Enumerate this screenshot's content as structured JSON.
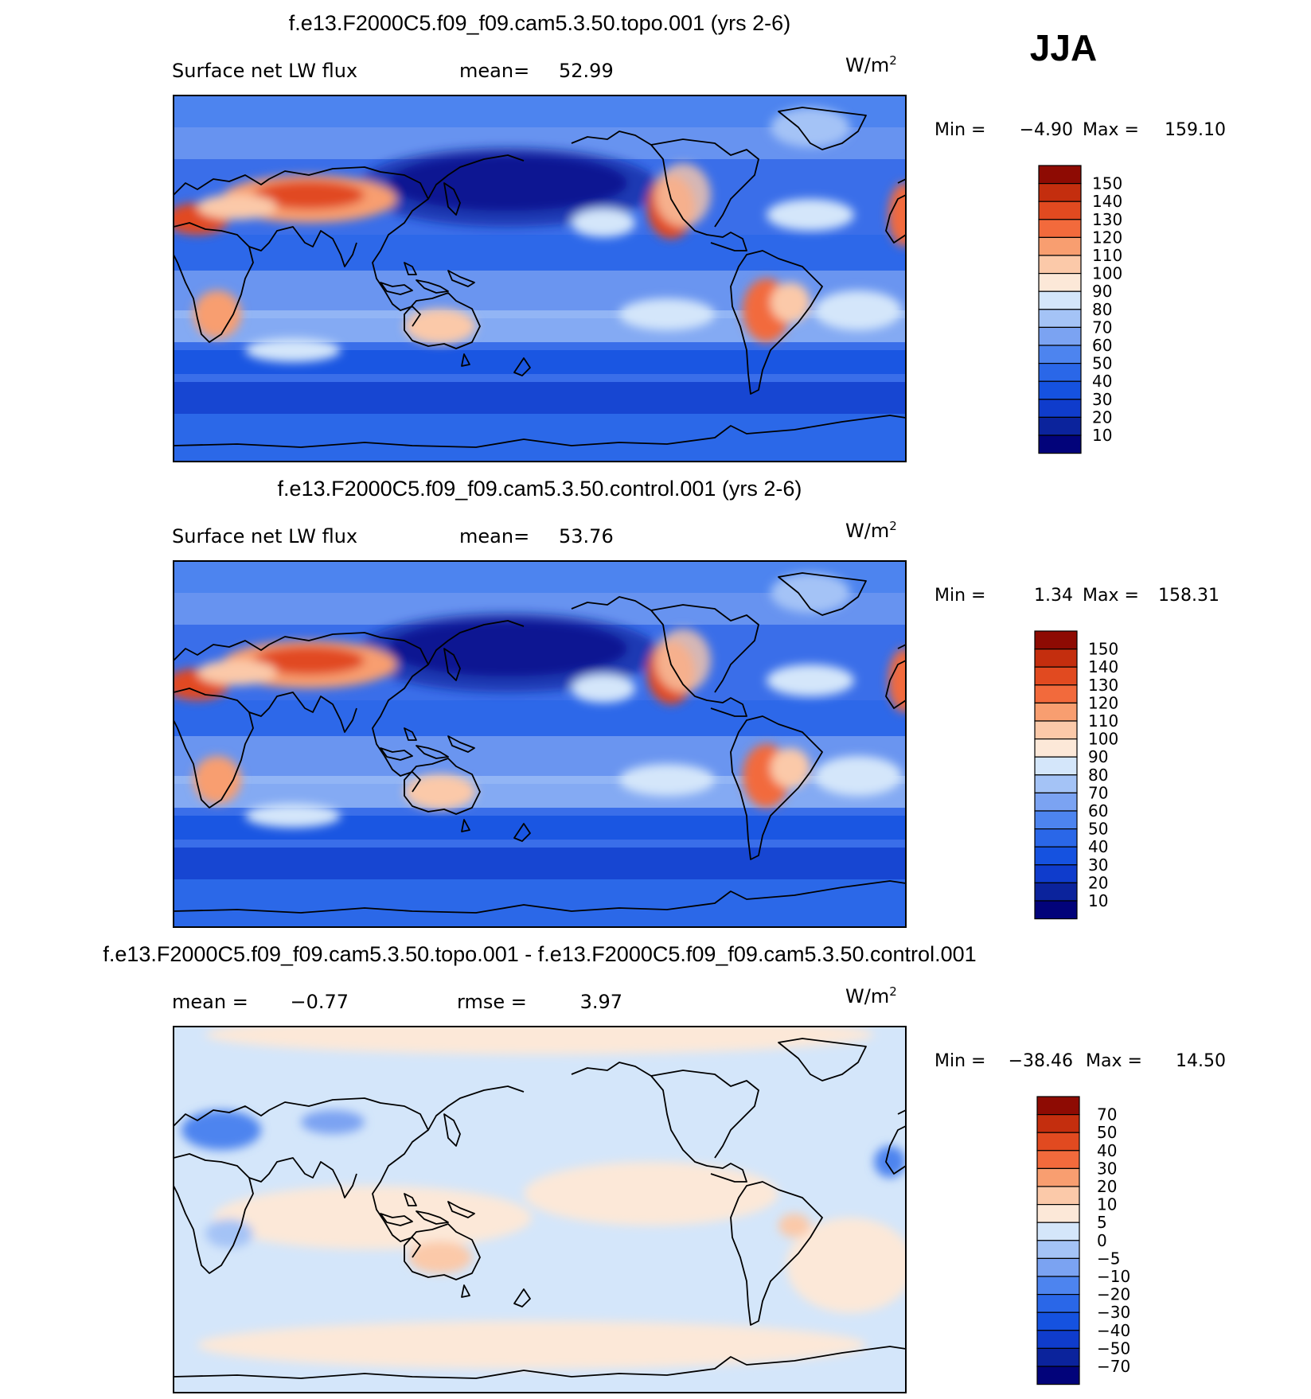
{
  "season": "JJA",
  "chart_data": [
    {
      "type": "heatmap",
      "title": "f.e13.F2000C5.f09_f09.cam5.3.50.topo.001 (yrs 2-6)",
      "left_label": "Surface net LW flux",
      "stat_label": "mean=",
      "stat_value": "52.99",
      "units_base": "W/m",
      "units_exp": "2",
      "min_label": "Min =",
      "min_value": "−4.90",
      "max_label": "Max =",
      "max_value": "159.10",
      "colorbar": {
        "colors": [
          "#02037a",
          "#0b239c",
          "#0f3ccc",
          "#1552e0",
          "#2a67e8",
          "#4d84ef",
          "#7ba3f2",
          "#a4c3f6",
          "#d4e6fa",
          "#fce8d8",
          "#fbc9a9",
          "#f89e70",
          "#f26a3c",
          "#e14a20",
          "#c42e0e",
          "#8e0b03"
        ],
        "labels": [
          "10",
          "20",
          "30",
          "40",
          "50",
          "60",
          "70",
          "80",
          "90",
          "100",
          "110",
          "120",
          "130",
          "140",
          "150"
        ]
      },
      "land_highlights": [
        {
          "region": "Sahara / Middle East / Tibet",
          "level": "high"
        },
        {
          "region": "Western North America",
          "level": "high"
        },
        {
          "region": "Southern Africa",
          "level": "high"
        },
        {
          "region": "Australia",
          "level": "medium"
        },
        {
          "region": "South America (Andes)",
          "level": "high"
        },
        {
          "region": "North Pacific",
          "level": "low"
        }
      ]
    },
    {
      "type": "heatmap",
      "title": "f.e13.F2000C5.f09_f09.cam5.3.50.control.001 (yrs 2-6)",
      "left_label": "Surface net LW flux",
      "stat_label": "mean=",
      "stat_value": "53.76",
      "units_base": "W/m",
      "units_exp": "2",
      "min_label": "Min =",
      "min_value": "1.34",
      "max_label": "Max =",
      "max_value": "158.31",
      "colorbar": {
        "colors": [
          "#02037a",
          "#0b239c",
          "#0f3ccc",
          "#1552e0",
          "#2a67e8",
          "#4d84ef",
          "#7ba3f2",
          "#a4c3f6",
          "#d4e6fa",
          "#fce8d8",
          "#fbc9a9",
          "#f89e70",
          "#f26a3c",
          "#e14a20",
          "#c42e0e",
          "#8e0b03"
        ],
        "labels": [
          "10",
          "20",
          "30",
          "40",
          "50",
          "60",
          "70",
          "80",
          "90",
          "100",
          "110",
          "120",
          "130",
          "140",
          "150"
        ]
      }
    },
    {
      "type": "heatmap",
      "title": "f.e13.F2000C5.f09_f09.cam5.3.50.topo.001 - f.e13.F2000C5.f09_f09.cam5.3.50.control.001",
      "left_label": "mean =",
      "left_value": "−0.77",
      "stat_label": "rmse =",
      "stat_value": "3.97",
      "units_base": "W/m",
      "units_exp": "2",
      "min_label": "Min =",
      "min_value": "−38.46",
      "max_label": "Max =",
      "max_value": "14.50",
      "colorbar": {
        "colors": [
          "#02037a",
          "#0b239c",
          "#0f3ccc",
          "#1552e0",
          "#2a67e8",
          "#4d84ef",
          "#7ba3f2",
          "#a4c3f6",
          "#d4e6fa",
          "#fce8d8",
          "#fbc9a9",
          "#f89e70",
          "#f26a3c",
          "#e14a20",
          "#c42e0e",
          "#8e0b03"
        ],
        "labels": [
          "70",
          "50",
          "40",
          "30",
          "20",
          "10",
          "5",
          "0",
          "−5",
          "−10",
          "−20",
          "−30",
          "−40",
          "−50",
          "−70"
        ]
      }
    }
  ]
}
